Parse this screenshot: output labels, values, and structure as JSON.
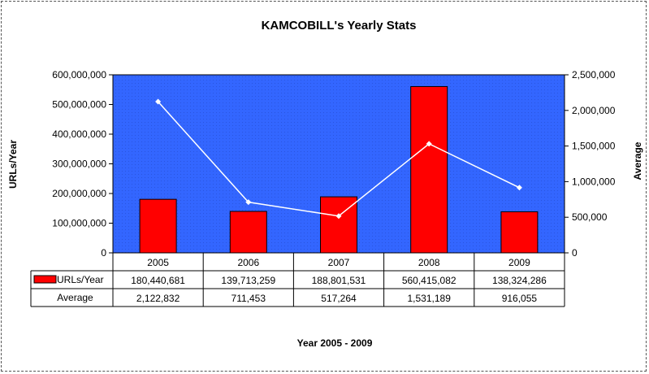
{
  "chart_data": {
    "type": "bar",
    "title": "KAMCOBILL's Yearly Stats",
    "xlabel": "Year 2005 - 2009",
    "ylabel": "URLs/Year",
    "y2label": "Average",
    "categories": [
      "2005",
      "2006",
      "2007",
      "2008",
      "2009"
    ],
    "series": [
      {
        "name": "URLs/Year",
        "type": "bar",
        "axis": "left",
        "values": [
          180440681,
          139713259,
          188801531,
          560415082,
          138324286
        ],
        "labels": [
          "180,440,681",
          "139,713,259",
          "188,801,531",
          "560,415,082",
          "138,324,286"
        ]
      },
      {
        "name": "Average",
        "type": "line",
        "axis": "right",
        "values": [
          2122832,
          711453,
          517264,
          1531189,
          916055
        ],
        "labels": [
          "2,122,832",
          "711,453",
          "517,264",
          "1,531,189",
          "916,055"
        ]
      }
    ],
    "ylim": [
      0,
      600000000
    ],
    "y2lim": [
      0,
      2500000
    ],
    "yticks": [
      "0",
      "100,000,000",
      "200,000,000",
      "300,000,000",
      "400,000,000",
      "500,000,000",
      "600,000,000"
    ],
    "y2ticks": [
      "0",
      "500,000",
      "1,000,000",
      "1,500,000",
      "2,000,000",
      "2,500,000"
    ],
    "data_table": true,
    "colors": {
      "plot_area": "#3366ff",
      "bar_fill": "#ff0000",
      "bar_stroke": "#000000",
      "line": "#ffffff",
      "markers": "#ffffff"
    }
  }
}
